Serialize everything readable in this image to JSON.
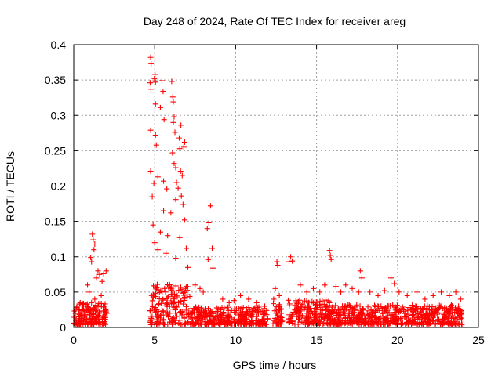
{
  "chart_data": {
    "type": "scatter",
    "title": "Day 248 of 2024, Rate Of TEC Index for receiver areg",
    "xlabel": "GPS time / hours",
    "ylabel": "ROTI / TECUs",
    "xlim": [
      0,
      25
    ],
    "ylim": [
      0,
      0.4
    ],
    "x_ticks": [
      "0",
      "5",
      "10",
      "15",
      "20",
      "25"
    ],
    "y_ticks": [
      "0",
      "0.05",
      "0.1",
      "0.15",
      "0.2",
      "0.25",
      "0.3",
      "0.35",
      "0.4"
    ],
    "grid": true,
    "marker": "+",
    "color": "#ff0000",
    "series": [
      {
        "values": [
          [
            4.75,
            0.382
          ],
          [
            4.78,
            0.373
          ],
          [
            4.72,
            0.346
          ],
          [
            4.77,
            0.337
          ],
          [
            5.02,
            0.358
          ],
          [
            4.98,
            0.352
          ],
          [
            5.05,
            0.347
          ],
          [
            5.45,
            0.349
          ],
          [
            6.05,
            0.348
          ],
          [
            5.52,
            0.334
          ],
          [
            6.12,
            0.326
          ],
          [
            6.15,
            0.319
          ],
          [
            5.05,
            0.316
          ],
          [
            5.35,
            0.311
          ],
          [
            5.58,
            0.294
          ],
          [
            6.2,
            0.298
          ],
          [
            6.15,
            0.29
          ],
          [
            6.62,
            0.286
          ],
          [
            6.52,
            0.268
          ],
          [
            6.85,
            0.262
          ],
          [
            4.75,
            0.279
          ],
          [
            5.05,
            0.272
          ],
          [
            6.25,
            0.276
          ],
          [
            6.8,
            0.255
          ],
          [
            6.55,
            0.253
          ],
          [
            5.1,
            0.258
          ],
          [
            6.1,
            0.247
          ],
          [
            4.75,
            0.221
          ],
          [
            6.2,
            0.232
          ],
          [
            6.3,
            0.226
          ],
          [
            6.6,
            0.221
          ],
          [
            6.7,
            0.215
          ],
          [
            5.2,
            0.213
          ],
          [
            5.55,
            0.207
          ],
          [
            6.35,
            0.205
          ],
          [
            4.95,
            0.204
          ],
          [
            5.75,
            0.196
          ],
          [
            6.45,
            0.197
          ],
          [
            6.65,
            0.186
          ],
          [
            6.75,
            0.174
          ],
          [
            8.45,
            0.172
          ],
          [
            4.85,
            0.185
          ],
          [
            6.3,
            0.181
          ],
          [
            5.55,
            0.165
          ],
          [
            6.0,
            0.162
          ],
          [
            6.85,
            0.152
          ],
          [
            8.35,
            0.148
          ],
          [
            8.25,
            0.14
          ],
          [
            4.9,
            0.145
          ],
          [
            5.35,
            0.135
          ],
          [
            5.8,
            0.13
          ],
          [
            6.55,
            0.127
          ],
          [
            6.95,
            0.112
          ],
          [
            8.55,
            0.112
          ],
          [
            5.0,
            0.12
          ],
          [
            5.2,
            0.11
          ],
          [
            5.7,
            0.105
          ],
          [
            6.3,
            0.098
          ],
          [
            7.05,
            0.085
          ],
          [
            8.3,
            0.096
          ],
          [
            8.6,
            0.084
          ],
          [
            12.55,
            0.093
          ],
          [
            12.6,
            0.088
          ],
          [
            13.4,
            0.1
          ],
          [
            13.3,
            0.093
          ],
          [
            13.5,
            0.094
          ],
          [
            15.8,
            0.109
          ],
          [
            15.85,
            0.102
          ],
          [
            15.9,
            0.096
          ],
          [
            17.7,
            0.08
          ],
          [
            17.8,
            0.07
          ],
          [
            19.6,
            0.07
          ],
          [
            19.8,
            0.062
          ],
          [
            1.15,
            0.132
          ],
          [
            1.2,
            0.124
          ],
          [
            1.3,
            0.118
          ],
          [
            1.25,
            0.11
          ],
          [
            1.05,
            0.099
          ],
          [
            1.1,
            0.093
          ],
          [
            1.5,
            0.08
          ],
          [
            1.6,
            0.075
          ],
          [
            2.0,
            0.08
          ],
          [
            1.85,
            0.076
          ],
          [
            0.85,
            0.06
          ],
          [
            1.4,
            0.07
          ],
          [
            0.4,
            0.035
          ],
          [
            0.2,
            0.03
          ],
          [
            0.6,
            0.034
          ],
          [
            0.95,
            0.05
          ],
          [
            1.75,
            0.065
          ],
          [
            0.1,
            0.02
          ],
          [
            0.3,
            0.015
          ],
          [
            0.5,
            0.025
          ],
          [
            0.7,
            0.018
          ],
          [
            0.9,
            0.028
          ],
          [
            1.1,
            0.035
          ],
          [
            1.3,
            0.04
          ],
          [
            1.5,
            0.03
          ],
          [
            1.7,
            0.045
          ],
          [
            1.9,
            0.03
          ],
          [
            2.05,
            0.02
          ],
          [
            0.15,
            0.01
          ],
          [
            0.45,
            0.012
          ],
          [
            0.8,
            0.008
          ],
          [
            1.45,
            0.015
          ],
          [
            7.5,
            0.06
          ],
          [
            7.8,
            0.055
          ],
          [
            8.0,
            0.05
          ],
          [
            9.2,
            0.04
          ],
          [
            9.6,
            0.035
          ],
          [
            10.3,
            0.045
          ],
          [
            10.8,
            0.04
          ],
          [
            11.3,
            0.035
          ],
          [
            11.8,
            0.03
          ],
          [
            9.9,
            0.038
          ],
          [
            12.45,
            0.055
          ],
          [
            12.7,
            0.045
          ],
          [
            12.35,
            0.04
          ],
          [
            14.0,
            0.06
          ],
          [
            14.4,
            0.05
          ],
          [
            14.8,
            0.055
          ],
          [
            15.2,
            0.05
          ],
          [
            15.5,
            0.06
          ],
          [
            16.2,
            0.058
          ],
          [
            16.5,
            0.05
          ],
          [
            16.8,
            0.06
          ],
          [
            17.2,
            0.055
          ],
          [
            17.6,
            0.05
          ],
          [
            18.3,
            0.05
          ],
          [
            18.8,
            0.045
          ],
          [
            19.2,
            0.052
          ],
          [
            20.1,
            0.05
          ],
          [
            20.6,
            0.045
          ],
          [
            21.2,
            0.05
          ],
          [
            21.7,
            0.04
          ],
          [
            22.2,
            0.045
          ],
          [
            22.7,
            0.05
          ],
          [
            23.2,
            0.045
          ],
          [
            23.6,
            0.05
          ],
          [
            23.9,
            0.04
          ]
        ]
      }
    ],
    "dense_bands": [
      {
        "x": [
          0.0,
          2.1
        ],
        "ymax": 0.03
      },
      {
        "x": [
          4.7,
          7.2
        ],
        "ymax": 0.06
      },
      {
        "x": [
          7.2,
          12.0
        ],
        "ymax": 0.025
      },
      {
        "x": [
          12.3,
          12.9
        ],
        "ymax": 0.03
      },
      {
        "x": [
          13.2,
          16.0
        ],
        "ymax": 0.035
      },
      {
        "x": [
          16.0,
          24.0
        ],
        "ymax": 0.028
      }
    ]
  }
}
